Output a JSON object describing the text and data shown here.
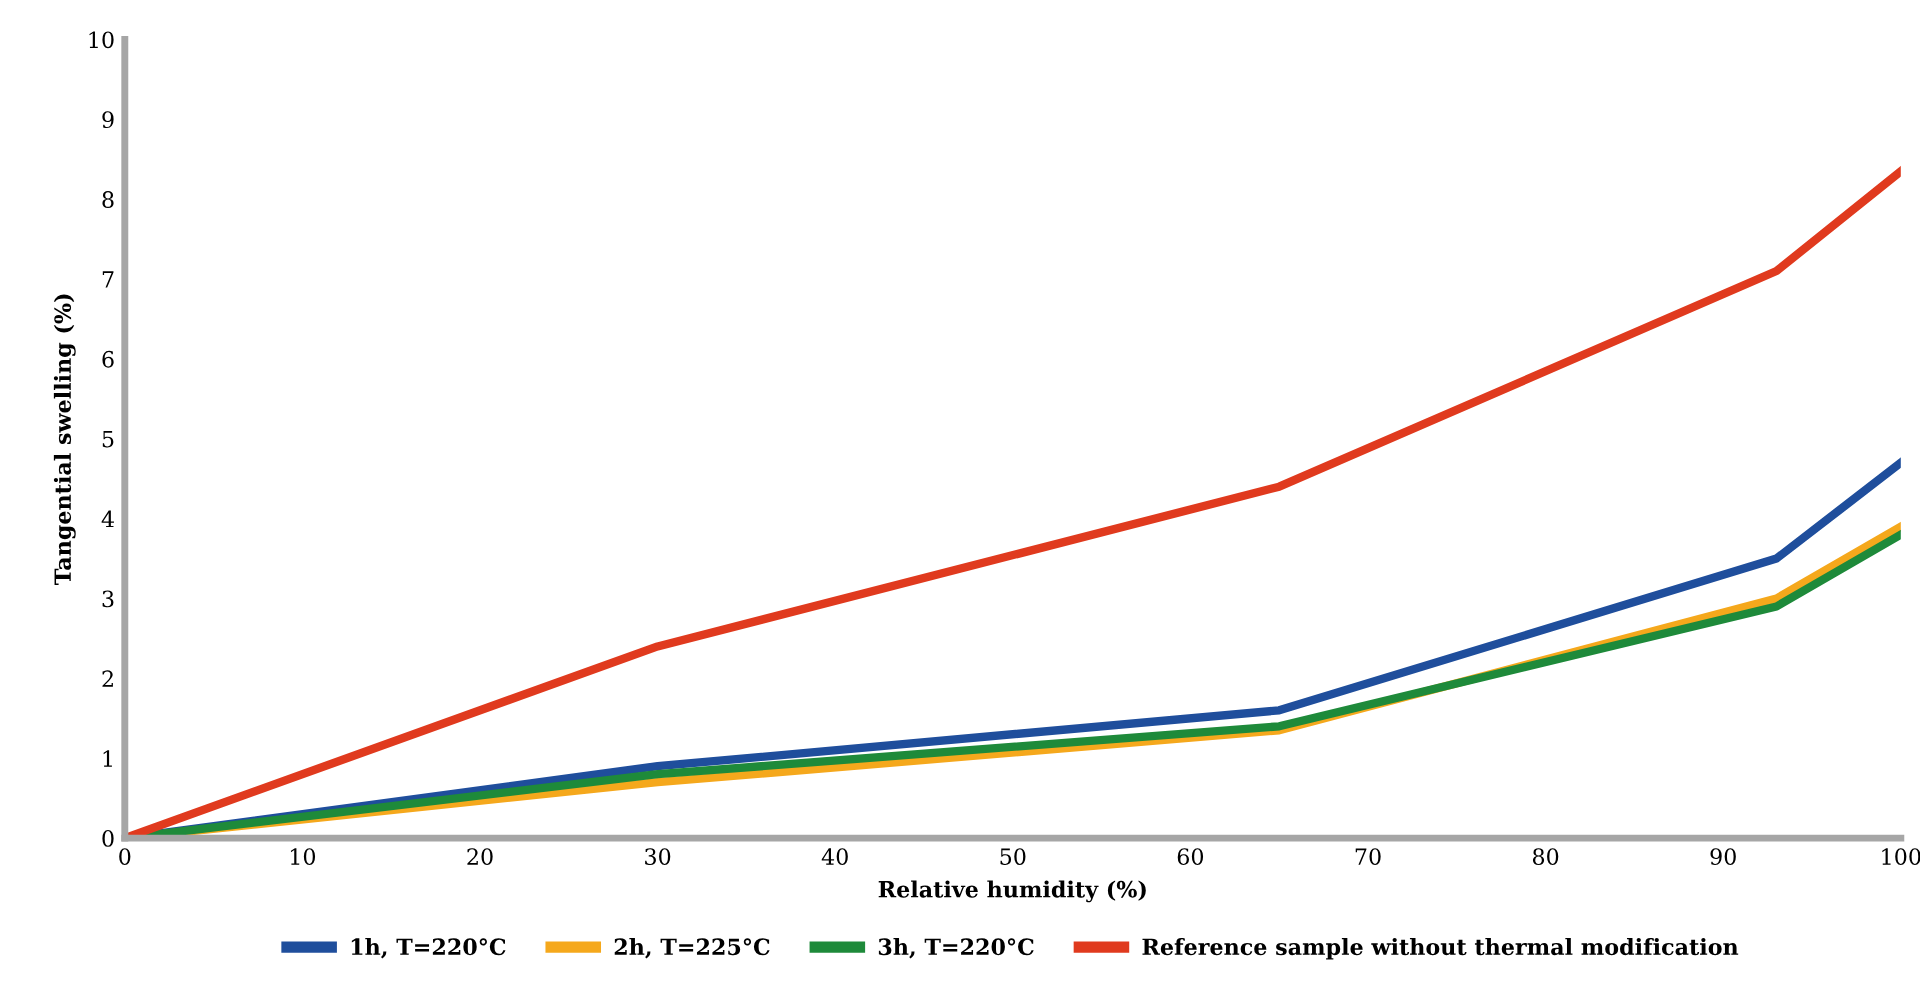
{
  "chart_data": {
    "type": "line",
    "xlabel": "Relative humidity (%)",
    "ylabel": "Tangential swelling (%)",
    "x": [
      0,
      30,
      65,
      93,
      100
    ],
    "series": [
      {
        "name": "1h, T=220°C",
        "color": "#1f4e9c",
        "values": [
          0,
          0.9,
          1.6,
          3.5,
          4.7
        ]
      },
      {
        "name": "2h, T=225°C",
        "color": "#f5a81c",
        "values": [
          0,
          0.7,
          1.35,
          3.0,
          3.9
        ]
      },
      {
        "name": "3h, T=220°C",
        "color": "#1e8a3a",
        "values": [
          0,
          0.8,
          1.4,
          2.9,
          3.8
        ]
      },
      {
        "name": "Reference sample without thermal modification",
        "color": "#e03a1e",
        "values": [
          0,
          2.4,
          4.4,
          7.1,
          8.35
        ]
      }
    ],
    "xlim": [
      0,
      100
    ],
    "xticks": [
      0,
      10,
      20,
      30,
      40,
      50,
      60,
      70,
      80,
      90,
      100
    ],
    "ylim": [
      0,
      10
    ],
    "yticks": [
      0,
      1,
      2,
      3,
      4,
      5,
      6,
      7,
      8,
      9,
      10
    ],
    "grid": false,
    "legend": "bottom",
    "marker": "none",
    "line_style": "solid"
  }
}
